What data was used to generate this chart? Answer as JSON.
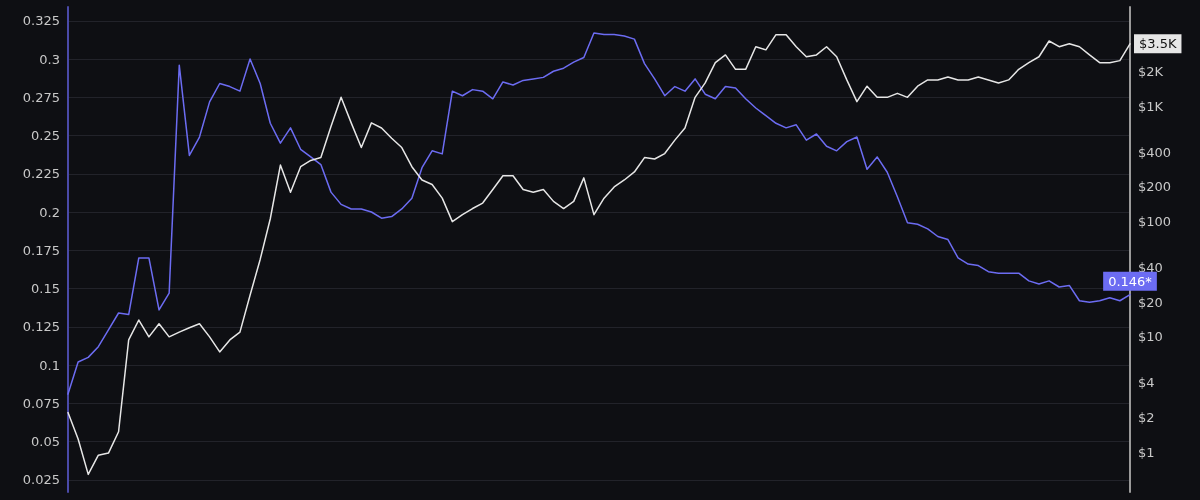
{
  "chart_data": {
    "type": "line",
    "categories": [
      null,
      null,
      null,
      null,
      null,
      null,
      null,
      null,
      null,
      null,
      null,
      null,
      null,
      null,
      null,
      null,
      null,
      null,
      null,
      null,
      null,
      null,
      null,
      null,
      null,
      null,
      null,
      null,
      null,
      null,
      null,
      null,
      null,
      null,
      null,
      null,
      null,
      null,
      null,
      null,
      null,
      null,
      null,
      null,
      null,
      null,
      null,
      null,
      null,
      null,
      null,
      null,
      null,
      null,
      null,
      null,
      null,
      null,
      null,
      null,
      null,
      null,
      null,
      null,
      null,
      null,
      null,
      null,
      null,
      null,
      null,
      null,
      null,
      null,
      null,
      null,
      null,
      null,
      null,
      null,
      null,
      null,
      null,
      null,
      null,
      null,
      null,
      null,
      null,
      null,
      null,
      null,
      null,
      null,
      null,
      null,
      null,
      null,
      null,
      null,
      null,
      null,
      null,
      null,
      null,
      null
    ],
    "series": [
      {
        "color": "#6c6cf2",
        "axis": "y",
        "values": [
          0.081,
          0.102,
          0.105,
          0.112,
          0.123,
          0.134,
          0.133,
          0.17,
          0.17,
          0.136,
          0.147,
          0.296,
          0.237,
          0.249,
          0.272,
          0.284,
          0.282,
          0.279,
          0.3,
          0.284,
          0.258,
          0.245,
          0.255,
          0.241,
          0.236,
          0.231,
          0.213,
          0.205,
          0.202,
          0.202,
          0.2,
          0.196,
          0.197,
          0.202,
          0.209,
          0.229,
          0.24,
          0.238,
          0.279,
          0.276,
          0.28,
          0.279,
          0.274,
          0.285,
          0.283,
          0.286,
          0.287,
          0.288,
          0.292,
          0.294,
          0.298,
          0.301,
          0.317,
          0.316,
          0.316,
          0.315,
          0.313,
          0.297,
          0.287,
          0.276,
          0.282,
          0.279,
          0.287,
          0.277,
          0.274,
          0.282,
          0.281,
          0.274,
          0.268,
          0.263,
          0.258,
          0.255,
          0.257,
          0.247,
          0.251,
          0.243,
          0.24,
          0.246,
          0.249,
          0.228,
          0.236,
          0.226,
          0.21,
          0.193,
          0.192,
          0.189,
          0.184,
          0.182,
          0.17,
          0.166,
          0.165,
          0.161,
          0.16,
          0.16,
          0.16,
          0.155,
          0.153,
          0.155,
          0.151,
          0.152,
          0.142,
          0.141,
          0.142,
          0.144,
          0.142,
          0.146
        ],
        "value_labels": [
          null,
          null,
          null,
          null,
          null,
          null,
          null,
          null,
          null,
          null,
          null,
          null,
          null,
          null,
          null,
          null,
          null,
          null,
          null,
          null,
          null,
          null,
          null,
          null,
          null,
          null,
          null,
          null,
          null,
          null,
          null,
          null,
          null,
          null,
          null,
          null,
          null,
          null,
          null,
          null,
          null,
          null,
          null,
          null,
          null,
          null,
          null,
          null,
          null,
          null,
          null,
          null,
          null,
          null,
          null,
          null,
          null,
          null,
          null,
          null,
          null,
          null,
          null,
          null,
          null,
          null,
          null,
          null,
          null,
          null,
          null,
          null,
          null,
          null,
          null,
          null,
          null,
          null,
          null,
          null,
          null,
          null,
          null,
          null,
          null,
          null,
          null,
          null,
          null,
          null,
          null,
          null,
          null,
          null,
          null,
          null,
          null,
          null,
          null,
          null,
          null,
          null,
          null,
          null,
          null,
          "0.146*"
        ]
      },
      {
        "color": "#e6e6e6",
        "axis": "y2",
        "values": [
          2.2,
          1.3,
          0.64,
          0.94,
          0.98,
          1.5,
          9.4,
          14,
          10,
          13,
          10,
          11,
          12,
          13,
          10,
          7.4,
          9.4,
          11,
          23,
          47,
          106,
          310,
          180,
          300,
          340,
          360,
          670,
          1200,
          720,
          440,
          720,
          650,
          530,
          440,
          300,
          230,
          210,
          160,
          100,
          115,
          130,
          145,
          190,
          250,
          250,
          190,
          180,
          190,
          150,
          130,
          150,
          240,
          115,
          160,
          200,
          230,
          270,
          360,
          350,
          390,
          510,
          650,
          1200,
          1600,
          2400,
          2800,
          2100,
          2100,
          3300,
          3100,
          4200,
          4200,
          3300,
          2700,
          2800,
          3300,
          2700,
          1700,
          1100,
          1500,
          1200,
          1200,
          1300,
          1200,
          1500,
          1700,
          1700,
          1800,
          1700,
          1700,
          1800,
          1700,
          1600,
          1700,
          2100,
          2400,
          2700,
          3700,
          3300,
          3500,
          3300,
          2800,
          2400,
          2400,
          2500,
          3500
        ],
        "value_labels": [
          null,
          null,
          null,
          null,
          null,
          null,
          null,
          null,
          null,
          null,
          null,
          null,
          null,
          null,
          null,
          null,
          null,
          null,
          null,
          null,
          null,
          null,
          null,
          null,
          null,
          null,
          null,
          null,
          null,
          null,
          null,
          null,
          null,
          null,
          null,
          null,
          null,
          null,
          null,
          null,
          null,
          null,
          null,
          null,
          null,
          null,
          null,
          null,
          null,
          null,
          null,
          null,
          null,
          null,
          null,
          null,
          null,
          null,
          null,
          null,
          null,
          null,
          null,
          null,
          null,
          null,
          null,
          null,
          null,
          null,
          null,
          null,
          null,
          null,
          null,
          null,
          null,
          null,
          null,
          null,
          null,
          null,
          null,
          null,
          null,
          null,
          null,
          null,
          null,
          null,
          null,
          null,
          null,
          null,
          null,
          null,
          null,
          null,
          null,
          null,
          null,
          null,
          null,
          null,
          null,
          "$3.5K"
        ]
      }
    ],
    "ylim": [
      0.017,
      0.334
    ],
    "yticks": [
      0.025,
      0.05,
      0.075,
      0.1,
      0.125,
      0.15,
      0.175,
      0.2,
      0.225,
      0.25,
      0.275,
      0.3,
      0.325
    ],
    "y2lim": [
      0.45,
      7300
    ],
    "y2ticks": [
      {
        "value": 1,
        "label": "$1"
      },
      {
        "value": 2,
        "label": "$2"
      },
      {
        "value": 4,
        "label": "$4"
      },
      {
        "value": 10,
        "label": "$10"
      },
      {
        "value": 20,
        "label": "$20"
      },
      {
        "value": 40,
        "label": "$40"
      },
      {
        "value": 100,
        "label": "$100"
      },
      {
        "value": 200,
        "label": "$200"
      },
      {
        "value": 400,
        "label": "$400"
      },
      {
        "value": 1000,
        "label": "$1K"
      },
      {
        "value": 2000,
        "label": "$2K"
      }
    ],
    "log": "y2",
    "grid": "y",
    "marker": "none",
    "line_style": "solid"
  }
}
